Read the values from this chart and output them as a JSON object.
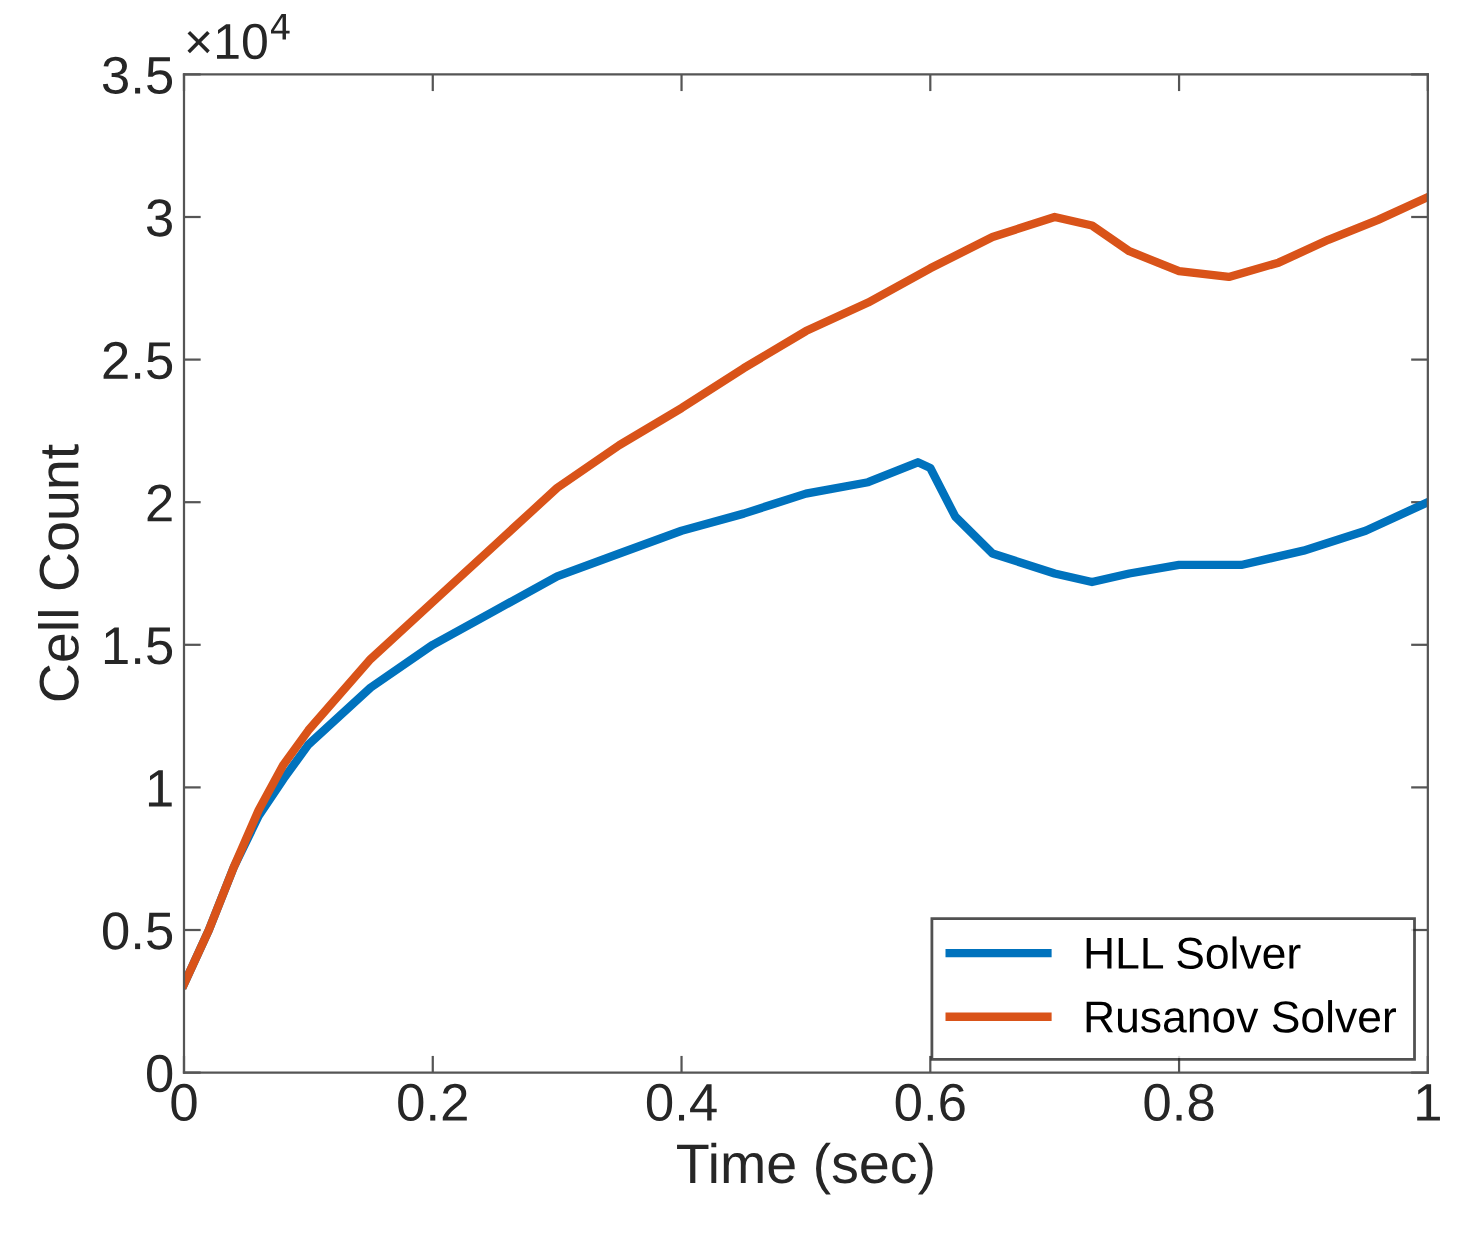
{
  "chart_data": {
    "type": "line",
    "xlabel": "Time (sec)",
    "ylabel": "Cell Count",
    "annotations": [
      "×10$^{4}$"
    ],
    "xlim": [
      0,
      1
    ],
    "xticks": [
      0,
      0.2,
      0.4,
      0.6,
      0.8,
      1
    ],
    "ylim": [
      0,
      3.5
    ],
    "yticks": [
      0,
      0.5,
      1,
      1.5,
      2,
      2.5,
      3,
      3.5
    ],
    "grid": false,
    "legend": "bottom right",
    "marker": "none",
    "line_style": "solid",
    "series": [
      {
        "name": "HLL Solver",
        "color": "#0072bd",
        "x": [
          0,
          0.02,
          0.04,
          0.06,
          0.08,
          0.1,
          0.15,
          0.2,
          0.25,
          0.3,
          0.35,
          0.4,
          0.45,
          0.5,
          0.55,
          0.59,
          0.6,
          0.62,
          0.65,
          0.7,
          0.73,
          0.76,
          0.8,
          0.85,
          0.9,
          0.95,
          1.0
        ],
        "values": [
          0.31,
          0.5,
          0.72,
          0.9,
          1.03,
          1.15,
          1.35,
          1.5,
          1.62,
          1.74,
          1.82,
          1.9,
          1.96,
          2.03,
          2.07,
          2.14,
          2.12,
          1.95,
          1.82,
          1.75,
          1.72,
          1.75,
          1.78,
          1.78,
          1.83,
          1.9,
          2.0
        ]
      },
      {
        "name": "Rusanov Solver",
        "color": "#d95319",
        "x": [
          0,
          0.02,
          0.04,
          0.06,
          0.08,
          0.1,
          0.15,
          0.2,
          0.25,
          0.3,
          0.35,
          0.4,
          0.45,
          0.5,
          0.55,
          0.6,
          0.65,
          0.7,
          0.73,
          0.76,
          0.8,
          0.84,
          0.88,
          0.92,
          0.96,
          1.0
        ],
        "values": [
          0.31,
          0.5,
          0.72,
          0.92,
          1.08,
          1.2,
          1.45,
          1.65,
          1.85,
          2.05,
          2.2,
          2.33,
          2.47,
          2.6,
          2.7,
          2.82,
          2.93,
          3.0,
          2.97,
          2.88,
          2.81,
          2.79,
          2.84,
          2.92,
          2.99,
          3.07
        ]
      }
    ]
  }
}
